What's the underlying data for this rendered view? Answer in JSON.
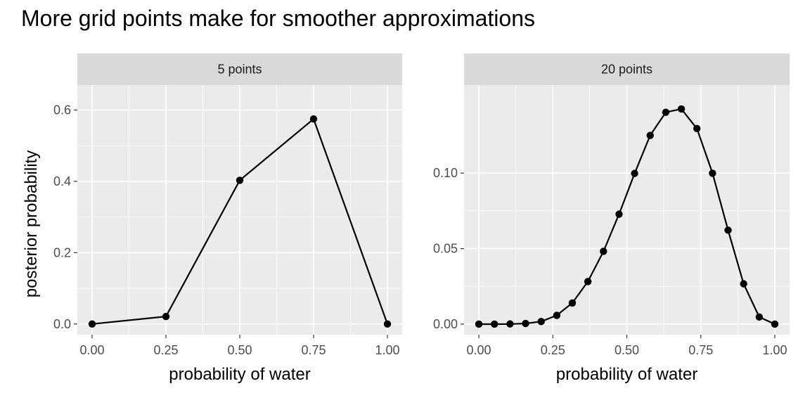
{
  "title": "More grid points make for smoother approximations",
  "chart_data": [
    {
      "type": "line",
      "facet": "5 points",
      "xlabel": "probability of water",
      "ylabel": "posterior probability",
      "xlim": [
        -0.05,
        1.05
      ],
      "ylim": [
        -0.03,
        0.67
      ],
      "xticks": [
        0,
        0.25,
        0.5,
        0.75,
        1
      ],
      "xtick_labels": [
        "0.00",
        "0.25",
        "0.50",
        "0.75",
        "1.00"
      ],
      "yticks": [
        0,
        0.2,
        0.4,
        0.6
      ],
      "ytick_labels": [
        "0.0",
        "0.2",
        "0.4",
        "0.6"
      ],
      "x": [
        0,
        0.25,
        0.5,
        0.75,
        1
      ],
      "y": [
        0,
        0.021,
        0.403,
        0.575,
        0
      ]
    },
    {
      "type": "line",
      "facet": "20 points",
      "xlabel": "probability of water",
      "ylabel": "",
      "xlim": [
        -0.05,
        1.05
      ],
      "ylim": [
        -0.007,
        0.1583
      ],
      "xticks": [
        0,
        0.25,
        0.5,
        0.75,
        1
      ],
      "xtick_labels": [
        "0.00",
        "0.25",
        "0.50",
        "0.75",
        "1.00"
      ],
      "yticks": [
        0,
        0.05,
        0.1
      ],
      "ytick_labels": [
        "0.00",
        "0.05",
        "0.10"
      ],
      "x": [
        0,
        0.0526,
        0.1053,
        0.1579,
        0.2105,
        0.2632,
        0.3158,
        0.3684,
        0.4211,
        0.4737,
        0.5263,
        0.5789,
        0.6316,
        0.6842,
        0.7368,
        0.7895,
        0.8421,
        0.8947,
        0.9474,
        1
      ],
      "y": [
        0,
        0,
        0.0001,
        0.0004,
        0.0017,
        0.0058,
        0.014,
        0.0282,
        0.0482,
        0.0728,
        0.0998,
        0.125,
        0.1403,
        0.1425,
        0.1295,
        0.0999,
        0.0622,
        0.0267,
        0.0047,
        0
      ]
    }
  ]
}
